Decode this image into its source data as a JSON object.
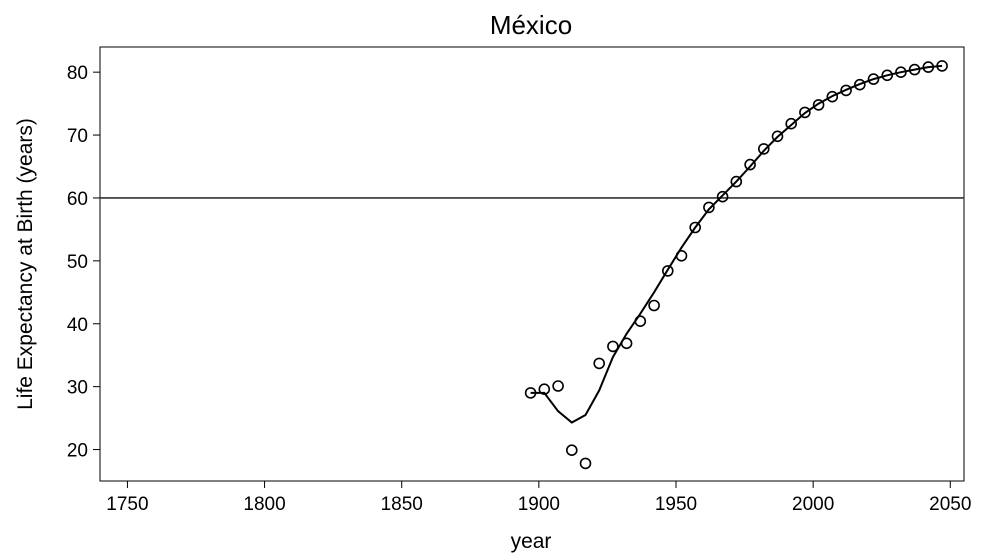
{
  "chart_data": {
    "type": "scatter",
    "title": "México",
    "xlabel": "year",
    "ylabel": "Life Expectancy at Birth (years)",
    "xlim": [
      1740,
      2055
    ],
    "ylim": [
      15,
      84
    ],
    "x_ticks": [
      1750,
      1800,
      1850,
      1900,
      1950,
      2000,
      2050
    ],
    "y_ticks": [
      20,
      30,
      40,
      50,
      60,
      70,
      80
    ],
    "reference_line_y": 60,
    "grid": false,
    "series": [
      {
        "kind": "scatter",
        "marker": "open-circle",
        "x": [
          1897,
          1902,
          1907,
          1912,
          1917,
          1922,
          1927,
          1932,
          1937,
          1942,
          1947,
          1952,
          1957,
          1962,
          1967,
          1972,
          1977,
          1982,
          1987,
          1992,
          1997,
          2002,
          2007,
          2012,
          2017,
          2022,
          2027,
          2032,
          2037,
          2042,
          2047
        ],
        "y": [
          29.0,
          29.6,
          30.1,
          19.9,
          17.8,
          33.7,
          36.4,
          36.9,
          40.4,
          42.9,
          48.4,
          50.8,
          55.3,
          58.5,
          60.2,
          62.6,
          65.3,
          67.8,
          69.8,
          71.8,
          73.6,
          74.8,
          76.1,
          77.1,
          78.0,
          78.9,
          79.5,
          80.0,
          80.4,
          80.8,
          81.0
        ]
      },
      {
        "kind": "line",
        "x": [
          1897,
          1902,
          1907,
          1912,
          1917,
          1922,
          1927,
          1932,
          1937,
          1942,
          1947,
          1952,
          1957,
          1962,
          1967,
          1972,
          1977,
          1982,
          1987,
          1992,
          1997,
          2002,
          2007,
          2012,
          2017,
          2022,
          2027,
          2032,
          2037,
          2042,
          2047
        ],
        "y": [
          29.0,
          29.0,
          26.1,
          24.3,
          25.5,
          29.4,
          34.7,
          38.4,
          41.6,
          45.0,
          48.6,
          52.1,
          55.3,
          58.2,
          60.4,
          62.6,
          65.0,
          67.5,
          69.7,
          71.6,
          73.5,
          75.0,
          76.2,
          77.2,
          78.1,
          78.9,
          79.5,
          80.0,
          80.4,
          80.8,
          81.0
        ]
      }
    ]
  }
}
